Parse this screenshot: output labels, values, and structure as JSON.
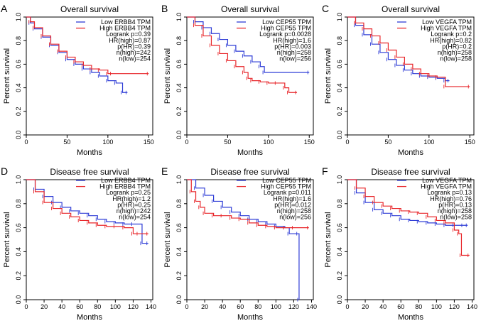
{
  "chart_data": [
    {
      "type": "line",
      "panel_label": "A",
      "title": "Overall survival",
      "xlabel": "Months",
      "ylabel": "Percent survival",
      "xlim": [
        0,
        155
      ],
      "ylim": [
        0,
        1.0
      ],
      "xticks": [
        0,
        50,
        100,
        150
      ],
      "yticks": [
        0.0,
        0.2,
        0.4,
        0.6,
        0.8,
        1.0
      ],
      "legend": [
        "Low ERBB4 TPM",
        "High ERBB4 TPM"
      ],
      "stats": [
        "Logrank p=0.39",
        "HR(high)=0.87",
        "p(HR)=0.39",
        "n(high)=242",
        "n(low)=254"
      ],
      "series": [
        {
          "name": "Low ERBB4 TPM",
          "color": "#2f3dd6",
          "x": [
            0,
            5,
            10,
            20,
            30,
            40,
            50,
            60,
            70,
            80,
            90,
            100,
            110,
            118,
            124
          ],
          "y": [
            1.0,
            0.95,
            0.9,
            0.83,
            0.76,
            0.7,
            0.64,
            0.6,
            0.56,
            0.53,
            0.5,
            0.46,
            0.44,
            0.36,
            0.36
          ]
        },
        {
          "name": "High ERBB4 TPM",
          "color": "#e8262a",
          "x": [
            0,
            5,
            10,
            20,
            30,
            40,
            50,
            60,
            70,
            80,
            90,
            100,
            105,
            150
          ],
          "y": [
            1.0,
            0.96,
            0.91,
            0.84,
            0.77,
            0.71,
            0.66,
            0.62,
            0.59,
            0.56,
            0.55,
            0.52,
            0.52,
            0.52
          ]
        }
      ]
    },
    {
      "type": "line",
      "panel_label": "B",
      "title": "Overall survival",
      "xlabel": "Months",
      "ylabel": "Percent survival",
      "xlim": [
        0,
        155
      ],
      "ylim": [
        0,
        1.0
      ],
      "xticks": [
        0,
        50,
        100,
        150
      ],
      "yticks": [
        0.0,
        0.2,
        0.4,
        0.6,
        0.8,
        1.0
      ],
      "legend": [
        "Low CEP55 TPM",
        "High CEP55 TPM"
      ],
      "stats": [
        "Logrank p=0.0028",
        "HR(high)=1.6",
        "p(HR)=0.003",
        "n(high)=258",
        "n(low)=256"
      ],
      "series": [
        {
          "name": "Low CEP55 TPM",
          "color": "#2f3dd6",
          "x": [
            0,
            10,
            20,
            30,
            40,
            50,
            60,
            70,
            80,
            90,
            95,
            150
          ],
          "y": [
            1.0,
            0.96,
            0.91,
            0.86,
            0.81,
            0.76,
            0.71,
            0.67,
            0.62,
            0.58,
            0.53,
            0.53
          ]
        },
        {
          "name": "High CEP55 TPM",
          "color": "#e8262a",
          "x": [
            0,
            10,
            20,
            30,
            40,
            50,
            60,
            70,
            75,
            80,
            90,
            100,
            110,
            120,
            125,
            135
          ],
          "y": [
            1.0,
            0.93,
            0.84,
            0.76,
            0.69,
            0.63,
            0.58,
            0.53,
            0.48,
            0.46,
            0.45,
            0.44,
            0.44,
            0.4,
            0.36,
            0.36
          ]
        }
      ]
    },
    {
      "type": "line",
      "panel_label": "C",
      "title": "Overall survival",
      "xlabel": "Months",
      "ylabel": "Percent survival",
      "xlim": [
        0,
        155
      ],
      "ylim": [
        0,
        1.0
      ],
      "xticks": [
        0,
        50,
        100,
        150
      ],
      "yticks": [
        0.0,
        0.2,
        0.4,
        0.6,
        0.8,
        1.0
      ],
      "legend": [
        "Low VEGFA TPM",
        "High VEGFA TPM"
      ],
      "stats": [
        "Logrank p=0.2",
        "HR(high)=0.82",
        "p(HR)=0.2",
        "n(high)=258",
        "n(low)=258"
      ],
      "series": [
        {
          "name": "Low VEGFA TPM",
          "color": "#2f3dd6",
          "x": [
            0,
            10,
            20,
            30,
            40,
            50,
            60,
            70,
            80,
            90,
            100,
            110,
            120,
            125
          ],
          "y": [
            1.0,
            0.93,
            0.85,
            0.77,
            0.7,
            0.64,
            0.59,
            0.55,
            0.52,
            0.5,
            0.49,
            0.48,
            0.46,
            0.46
          ]
        },
        {
          "name": "High VEGFA TPM",
          "color": "#e8262a",
          "x": [
            0,
            10,
            20,
            30,
            40,
            50,
            60,
            70,
            80,
            90,
            100,
            110,
            120,
            150
          ],
          "y": [
            1.0,
            0.95,
            0.9,
            0.84,
            0.78,
            0.72,
            0.66,
            0.6,
            0.56,
            0.52,
            0.5,
            0.49,
            0.41,
            0.41
          ]
        }
      ]
    },
    {
      "type": "line",
      "panel_label": "D",
      "title": "Disease free survival",
      "xlabel": "Months",
      "ylabel": "Percent survival",
      "xlim": [
        0,
        142
      ],
      "ylim": [
        0,
        1.0
      ],
      "xticks": [
        0,
        20,
        40,
        60,
        80,
        100,
        120,
        140
      ],
      "yticks": [
        0.0,
        0.2,
        0.4,
        0.6,
        0.8,
        1.0
      ],
      "legend": [
        "Low ERBB4 TPM",
        "High ERBB4 TPM"
      ],
      "stats": [
        "Logrank p=0.25",
        "HR(high)=1.2",
        "p(HR)=0.25",
        "n(high)=242",
        "n(low)=254"
      ],
      "series": [
        {
          "name": "Low ERBB4 TPM",
          "color": "#2f3dd6",
          "x": [
            0,
            10,
            20,
            30,
            40,
            50,
            60,
            70,
            80,
            90,
            100,
            110,
            120,
            130,
            137
          ],
          "y": [
            1.0,
            0.92,
            0.86,
            0.81,
            0.77,
            0.74,
            0.72,
            0.7,
            0.67,
            0.65,
            0.64,
            0.63,
            0.63,
            0.47,
            0.47
          ]
        },
        {
          "name": "High ERBB4 TPM",
          "color": "#e8262a",
          "x": [
            0,
            10,
            20,
            30,
            40,
            50,
            60,
            70,
            80,
            90,
            100,
            110,
            120,
            126,
            137
          ],
          "y": [
            1.0,
            0.9,
            0.81,
            0.76,
            0.72,
            0.69,
            0.66,
            0.64,
            0.62,
            0.61,
            0.61,
            0.6,
            0.55,
            0.55,
            0.55
          ]
        }
      ]
    },
    {
      "type": "line",
      "panel_label": "E",
      "title": "Disease free survival",
      "xlabel": "Months",
      "ylabel": "Percent survival",
      "xlim": [
        0,
        142
      ],
      "ylim": [
        0,
        1.0
      ],
      "xticks": [
        0,
        20,
        40,
        60,
        80,
        100,
        120,
        140
      ],
      "yticks": [
        0.0,
        0.2,
        0.4,
        0.6,
        0.8,
        1.0
      ],
      "legend": [
        "Low CEP55 TPM",
        "High CEP55 TPM"
      ],
      "stats": [
        "Logrank p=0.011",
        "HR(high)=1.6",
        "p(HR)=0.012",
        "n(high)=258",
        "n(low)=256"
      ],
      "series": [
        {
          "name": "Low CEP55 TPM",
          "color": "#2f3dd6",
          "x": [
            0,
            10,
            20,
            30,
            40,
            50,
            60,
            70,
            80,
            90,
            100,
            110,
            115,
            125,
            126
          ],
          "y": [
            1.0,
            0.93,
            0.87,
            0.82,
            0.77,
            0.73,
            0.7,
            0.67,
            0.65,
            0.63,
            0.61,
            0.6,
            0.55,
            0.55,
            0.0
          ]
        },
        {
          "name": "High CEP55 TPM",
          "color": "#e8262a",
          "x": [
            0,
            5,
            10,
            15,
            20,
            30,
            40,
            50,
            60,
            70,
            80,
            90,
            100,
            110,
            120,
            137
          ],
          "y": [
            1.0,
            0.9,
            0.82,
            0.77,
            0.72,
            0.7,
            0.7,
            0.68,
            0.67,
            0.64,
            0.62,
            0.61,
            0.6,
            0.6,
            0.6,
            0.6
          ]
        }
      ]
    },
    {
      "type": "line",
      "panel_label": "F",
      "title": "Disease free survival",
      "xlabel": "Months",
      "ylabel": "Percent survival",
      "xlim": [
        0,
        142
      ],
      "ylim": [
        0,
        1.0
      ],
      "xticks": [
        0,
        20,
        40,
        60,
        80,
        100,
        120,
        140
      ],
      "yticks": [
        0.0,
        0.2,
        0.4,
        0.6,
        0.8,
        1.0
      ],
      "legend": [
        "Low VEGFA TPM",
        "High VEGFA TPM"
      ],
      "stats": [
        "Logrank p=0.13",
        "HR(high)=0.76",
        "p(HR)=0.13",
        "n(high)=258",
        "n(low)=258"
      ],
      "series": [
        {
          "name": "Low VEGFA TPM",
          "color": "#2f3dd6",
          "x": [
            0,
            10,
            20,
            30,
            40,
            50,
            60,
            70,
            80,
            90,
            100,
            110,
            120,
            130,
            135
          ],
          "y": [
            1.0,
            0.89,
            0.81,
            0.75,
            0.72,
            0.7,
            0.67,
            0.66,
            0.65,
            0.64,
            0.63,
            0.62,
            0.62,
            0.62,
            0.62
          ]
        },
        {
          "name": "High VEGFA TPM",
          "color": "#e8262a",
          "x": [
            0,
            10,
            20,
            30,
            40,
            50,
            60,
            70,
            80,
            90,
            100,
            110,
            120,
            125,
            128,
            137
          ],
          "y": [
            1.0,
            0.93,
            0.86,
            0.81,
            0.78,
            0.76,
            0.74,
            0.73,
            0.72,
            0.69,
            0.66,
            0.64,
            0.58,
            0.55,
            0.37,
            0.37
          ]
        }
      ]
    }
  ]
}
